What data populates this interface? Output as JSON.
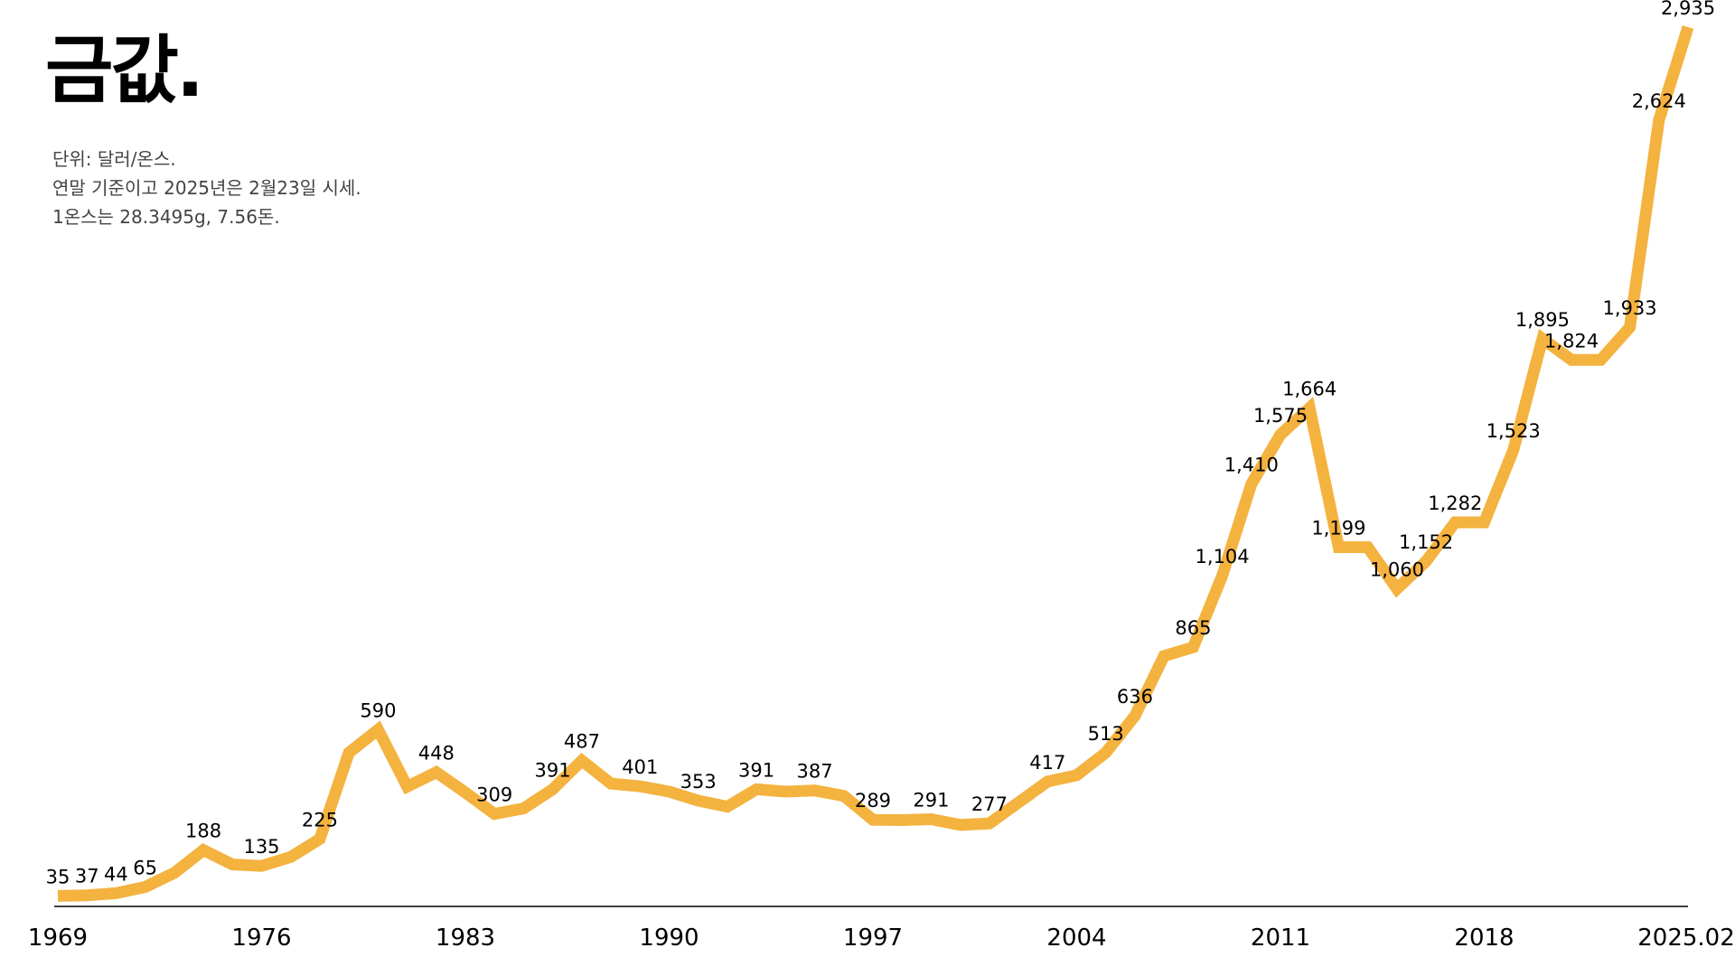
{
  "title": "금값.",
  "notes": [
    "단위: 달러/온스.",
    "연말 기준이고 2025년은 2월23일 시세.",
    "1온스는 28.3495g, 7.56돈."
  ],
  "colors": {
    "line": "#F4B23F",
    "axis": "#000000",
    "text": "#000000"
  },
  "chart_data": {
    "type": "line",
    "title": "금값.",
    "xlabel": "",
    "ylabel": "",
    "ylim": [
      0,
      2935
    ],
    "grid": false,
    "x": [
      1969,
      1970,
      1971,
      1972,
      1973,
      1974,
      1975,
      1976,
      1977,
      1978,
      1979,
      1980,
      1981,
      1982,
      1983,
      1984,
      1985,
      1986,
      1987,
      1988,
      1989,
      1990,
      1991,
      1992,
      1993,
      1994,
      1995,
      1996,
      1997,
      1998,
      1999,
      2000,
      2001,
      2002,
      2003,
      2004,
      2005,
      2006,
      2007,
      2008,
      2009,
      2010,
      2011,
      2012,
      2013,
      2014,
      2015,
      2016,
      2017,
      2018,
      2019,
      2020,
      2021,
      2022,
      2023,
      2024,
      2025
    ],
    "y": [
      35,
      37,
      44,
      65,
      112,
      188,
      140,
      135,
      165,
      225,
      513,
      590,
      400,
      448,
      380,
      309,
      327,
      391,
      487,
      410,
      401,
      383,
      353,
      333,
      391,
      383,
      387,
      369,
      289,
      288,
      291,
      272,
      277,
      347,
      417,
      438,
      513,
      636,
      836,
      865,
      1104,
      1410,
      1575,
      1664,
      1199,
      1199,
      1060,
      1152,
      1282,
      1282,
      1523,
      1895,
      1824,
      1824,
      1933,
      2624,
      2935
    ],
    "data_labels": [
      {
        "x": 1969,
        "text": "35"
      },
      {
        "x": 1970,
        "text": "37"
      },
      {
        "x": 1971,
        "text": "44"
      },
      {
        "x": 1972,
        "text": "65"
      },
      {
        "x": 1974,
        "text": "188"
      },
      {
        "x": 1976,
        "text": "135"
      },
      {
        "x": 1978,
        "text": "225"
      },
      {
        "x": 1980,
        "text": "590"
      },
      {
        "x": 1982,
        "text": "448"
      },
      {
        "x": 1984,
        "text": "309"
      },
      {
        "x": 1986,
        "text": "391"
      },
      {
        "x": 1987,
        "text": "487"
      },
      {
        "x": 1989,
        "text": "401"
      },
      {
        "x": 1991,
        "text": "353"
      },
      {
        "x": 1993,
        "text": "391"
      },
      {
        "x": 1995,
        "text": "387"
      },
      {
        "x": 1997,
        "text": "289"
      },
      {
        "x": 1999,
        "text": "291"
      },
      {
        "x": 2001,
        "text": "277"
      },
      {
        "x": 2003,
        "text": "417"
      },
      {
        "x": 2005,
        "text": "513"
      },
      {
        "x": 2006,
        "text": "636"
      },
      {
        "x": 2008,
        "text": "865"
      },
      {
        "x": 2009,
        "text": "1,104"
      },
      {
        "x": 2010,
        "text": "1,410"
      },
      {
        "x": 2011,
        "text": "1,575"
      },
      {
        "x": 2012,
        "text": "1,664"
      },
      {
        "x": 2013,
        "text": "1,199"
      },
      {
        "x": 2015,
        "text": "1,060"
      },
      {
        "x": 2016,
        "text": "1,152"
      },
      {
        "x": 2017,
        "text": "1,282"
      },
      {
        "x": 2019,
        "text": "1,523"
      },
      {
        "x": 2020,
        "text": "1,895"
      },
      {
        "x": 2021,
        "text": "1,824"
      },
      {
        "x": 2023,
        "text": "1,933"
      },
      {
        "x": 2024,
        "text": "2,624"
      },
      {
        "x": 2025,
        "text": "2,935"
      }
    ],
    "xticks": [
      {
        "x": 1969,
        "label": "1969"
      },
      {
        "x": 1976,
        "label": "1976"
      },
      {
        "x": 1983,
        "label": "1983"
      },
      {
        "x": 1990,
        "label": "1990"
      },
      {
        "x": 1997,
        "label": "1997"
      },
      {
        "x": 2004,
        "label": "2004"
      },
      {
        "x": 2011,
        "label": "2011"
      },
      {
        "x": 2018,
        "label": "2018"
      },
      {
        "x": 2025,
        "label": "2025.02"
      }
    ]
  }
}
